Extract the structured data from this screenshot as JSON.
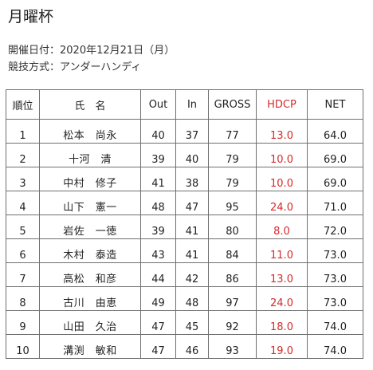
{
  "title": "月曜杯",
  "date_line": "開催日付：2020年12月21日（月）",
  "format_line": "競技方式：アンダーハンディ",
  "table": {
    "headers": {
      "rank": "順位",
      "name": "氏　名",
      "out": "Out",
      "in": "In",
      "gross": "GROSS",
      "hdcp": "HDCP",
      "net": "NET"
    },
    "rows": [
      {
        "rank": "1",
        "name": "松本　尚永",
        "out": "40",
        "in": "37",
        "gross": "77",
        "hdcp": "13.0",
        "net": "64.0"
      },
      {
        "rank": "2",
        "name": "十河　清",
        "out": "39",
        "in": "40",
        "gross": "79",
        "hdcp": "10.0",
        "net": "69.0"
      },
      {
        "rank": "3",
        "name": "中村　修子",
        "out": "41",
        "in": "38",
        "gross": "79",
        "hdcp": "10.0",
        "net": "69.0"
      },
      {
        "rank": "4",
        "name": "山下　憲一",
        "out": "48",
        "in": "47",
        "gross": "95",
        "hdcp": "24.0",
        "net": "71.0"
      },
      {
        "rank": "5",
        "name": "岩佐　一徳",
        "out": "39",
        "in": "41",
        "gross": "80",
        "hdcp": "8.0",
        "net": "72.0"
      },
      {
        "rank": "6",
        "name": "木村　泰造",
        "out": "43",
        "in": "41",
        "gross": "84",
        "hdcp": "11.0",
        "net": "73.0"
      },
      {
        "rank": "7",
        "name": "高松　和彦",
        "out": "44",
        "in": "42",
        "gross": "86",
        "hdcp": "13.0",
        "net": "73.0"
      },
      {
        "rank": "8",
        "name": "古川　由恵",
        "out": "49",
        "in": "48",
        "gross": "97",
        "hdcp": "24.0",
        "net": "73.0"
      },
      {
        "rank": "9",
        "name": "山田　久治",
        "out": "47",
        "in": "45",
        "gross": "92",
        "hdcp": "18.0",
        "net": "74.0"
      },
      {
        "rank": "10",
        "name": "溝渕　敏和",
        "out": "47",
        "in": "46",
        "gross": "93",
        "hdcp": "19.0",
        "net": "74.0"
      }
    ]
  },
  "colors": {
    "hdcp": "#d42a2a",
    "text": "#222222",
    "border": "#6f6f6f"
  }
}
